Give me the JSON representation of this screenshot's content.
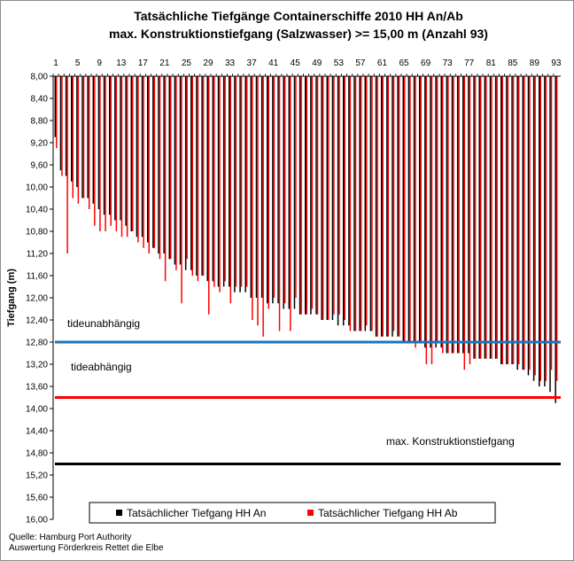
{
  "chart_data": {
    "type": "bar",
    "title": "Tatsächliche Tiefgänge Containerschiffe 2010 HH An/Ab",
    "subtitle": "max. Konstruktionstiefgang (Salzwasser) >= 15,00 m (Anzahl 93)",
    "ylabel": "Tiefgang (m)",
    "ylim": [
      8.0,
      16.0
    ],
    "y_inverted": true,
    "y_ticks": [
      "8,00",
      "8,40",
      "8,80",
      "9,20",
      "9,60",
      "10,00",
      "10,40",
      "10,80",
      "11,20",
      "11,60",
      "12,00",
      "12,40",
      "12,80",
      "13,20",
      "13,60",
      "14,00",
      "14,40",
      "14,80",
      "15,20",
      "15,60",
      "16,00"
    ],
    "x_ticks": [
      "1",
      "5",
      "9",
      "13",
      "17",
      "21",
      "25",
      "29",
      "33",
      "37",
      "41",
      "45",
      "49",
      "53",
      "57",
      "61",
      "65",
      "69",
      "73",
      "77",
      "81",
      "85",
      "89",
      "93"
    ],
    "categories": [
      1,
      2,
      3,
      4,
      5,
      6,
      7,
      8,
      9,
      10,
      11,
      12,
      13,
      14,
      15,
      16,
      17,
      18,
      19,
      20,
      21,
      22,
      23,
      24,
      25,
      26,
      27,
      28,
      29,
      30,
      31,
      32,
      33,
      34,
      35,
      36,
      37,
      38,
      39,
      40,
      41,
      42,
      43,
      44,
      45,
      46,
      47,
      48,
      49,
      50,
      51,
      52,
      53,
      54,
      55,
      56,
      57,
      58,
      59,
      60,
      61,
      62,
      63,
      64,
      65,
      66,
      67,
      68,
      69,
      70,
      71,
      72,
      73,
      74,
      75,
      76,
      77,
      78,
      79,
      80,
      81,
      82,
      83,
      84,
      85,
      86,
      87,
      88,
      89,
      90,
      91,
      92,
      93
    ],
    "series": [
      {
        "name": "Tatsächlicher Tiefgang HH An",
        "color": "#000000",
        "values": [
          9.1,
          9.7,
          9.8,
          9.9,
          10.0,
          10.2,
          10.2,
          10.3,
          10.4,
          10.5,
          10.5,
          10.6,
          10.6,
          10.7,
          10.8,
          10.9,
          10.9,
          11.0,
          11.1,
          11.2,
          11.2,
          11.3,
          11.4,
          11.4,
          11.5,
          11.5,
          11.6,
          11.6,
          11.7,
          11.7,
          11.8,
          11.8,
          11.8,
          11.9,
          11.9,
          11.9,
          12.0,
          12.0,
          12.0,
          12.1,
          12.1,
          12.1,
          12.2,
          12.2,
          12.2,
          12.3,
          12.3,
          12.3,
          12.3,
          12.4,
          12.4,
          12.4,
          12.5,
          12.5,
          12.5,
          12.6,
          12.6,
          12.6,
          12.6,
          12.7,
          12.7,
          12.7,
          12.7,
          12.7,
          12.8,
          12.8,
          12.8,
          12.8,
          12.9,
          12.9,
          12.9,
          12.9,
          13.0,
          13.0,
          13.0,
          13.0,
          13.0,
          13.1,
          13.1,
          13.1,
          13.1,
          13.1,
          13.2,
          13.2,
          13.2,
          13.3,
          13.3,
          13.4,
          13.5,
          13.6,
          13.6,
          13.7,
          13.9
        ]
      },
      {
        "name": "Tatsächlicher Tiefgang HH Ab",
        "color": "#ff0000",
        "values": [
          9.3,
          9.8,
          11.2,
          10.2,
          10.3,
          10.2,
          10.4,
          10.7,
          10.8,
          10.8,
          10.7,
          10.8,
          10.9,
          10.9,
          10.8,
          11.0,
          11.1,
          11.2,
          11.1,
          11.3,
          11.7,
          11.3,
          11.5,
          12.1,
          11.3,
          11.6,
          11.7,
          11.6,
          12.3,
          11.8,
          11.9,
          11.7,
          12.1,
          11.8,
          11.8,
          11.8,
          12.4,
          12.5,
          12.7,
          12.2,
          12.0,
          12.6,
          12.1,
          12.6,
          12.0,
          12.3,
          12.3,
          12.2,
          12.3,
          12.4,
          12.4,
          12.3,
          12.3,
          12.4,
          12.6,
          12.6,
          12.6,
          12.5,
          12.6,
          12.7,
          12.7,
          12.7,
          12.6,
          12.7,
          12.8,
          12.8,
          12.9,
          12.8,
          13.2,
          13.2,
          12.8,
          13.0,
          13.0,
          13.0,
          13.0,
          13.3,
          13.2,
          13.1,
          13.1,
          13.1,
          13.1,
          13.1,
          13.2,
          13.2,
          13.2,
          13.2,
          13.3,
          13.3,
          13.4,
          13.5,
          13.5,
          13.3,
          13.5
        ]
      }
    ],
    "reference_lines": [
      {
        "label": "tideunabhängig",
        "value": 12.8,
        "color": "#1b75bc"
      },
      {
        "label": "tideabhängig",
        "value": 13.8,
        "color": "#ff0000"
      },
      {
        "label": "max. Konstruktionstiefgang",
        "value": 15.0,
        "color": "#000000"
      }
    ],
    "legend_position": "bottom",
    "grid": false
  },
  "annotations": {
    "tideunabhaengig": "tideunabhängig",
    "tideabhaengig": "tideabhängig",
    "konstruktion": "max. Konstruktionstiefgang"
  },
  "source": {
    "line1": "Quelle: Hamburg Port Authority",
    "line2": "Auswertung Förderkreis Rettet die Elbe"
  }
}
